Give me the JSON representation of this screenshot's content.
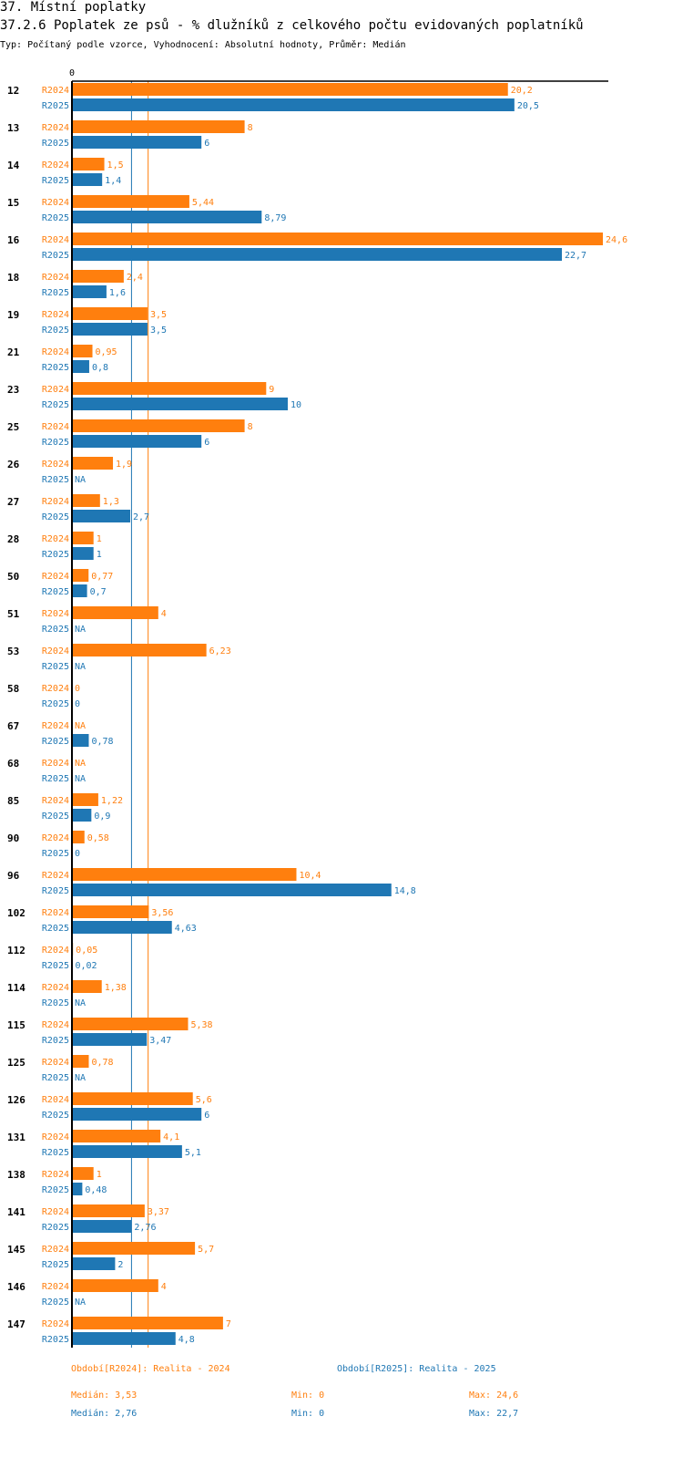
{
  "section_title": "37. Místní poplatky",
  "chart_title": "37.2.6 Poplatek ze psů - % dlužníků z celkového počtu evidovaných poplatníků",
  "subtitle": "Typ: Počítaný podle vzorce, Vyhodnocení: Absolutní hodnoty, Průměr: Medián",
  "colors": {
    "r2024": "#ff7f0e",
    "r2025": "#1f77b4"
  },
  "chart_data": {
    "type": "bar",
    "orientation": "horizontal",
    "axis_tick_label": "0",
    "xlim": [
      0,
      25.3
    ],
    "series": [
      {
        "name": "R2024",
        "legend": "Období[R2024]: Realita - 2024",
        "median": 3.53,
        "median_label": "Medián: 3,53",
        "min_label": "Min: 0",
        "max_label": "Max: 24,6"
      },
      {
        "name": "R2025",
        "legend": "Období[R2025]: Realita - 2025",
        "median": 2.76,
        "median_label": "Medián: 2,76",
        "min_label": "Min: 0",
        "max_label": "Max: 22,7"
      }
    ],
    "categories": [
      {
        "label": "12",
        "r2024": 20.2,
        "r2024_label": "20,2",
        "r2025": 20.5,
        "r2025_label": "20,5"
      },
      {
        "label": "13",
        "r2024": 8,
        "r2024_label": "8",
        "r2025": 6,
        "r2025_label": "6"
      },
      {
        "label": "14",
        "r2024": 1.5,
        "r2024_label": "1,5",
        "r2025": 1.4,
        "r2025_label": "1,4"
      },
      {
        "label": "15",
        "r2024": 5.44,
        "r2024_label": "5,44",
        "r2025": 8.79,
        "r2025_label": "8,79"
      },
      {
        "label": "16",
        "r2024": 24.6,
        "r2024_label": "24,6",
        "r2025": 22.7,
        "r2025_label": "22,7"
      },
      {
        "label": "18",
        "r2024": 2.4,
        "r2024_label": "2,4",
        "r2025": 1.6,
        "r2025_label": "1,6"
      },
      {
        "label": "19",
        "r2024": 3.5,
        "r2024_label": "3,5",
        "r2025": 3.5,
        "r2025_label": "3,5"
      },
      {
        "label": "21",
        "r2024": 0.95,
        "r2024_label": "0,95",
        "r2025": 0.8,
        "r2025_label": "0,8"
      },
      {
        "label": "23",
        "r2024": 9,
        "r2024_label": "9",
        "r2025": 10,
        "r2025_label": "10"
      },
      {
        "label": "25",
        "r2024": 8,
        "r2024_label": "8",
        "r2025": 6,
        "r2025_label": "6"
      },
      {
        "label": "26",
        "r2024": 1.9,
        "r2024_label": "1,9",
        "r2025": null,
        "r2025_label": "NA"
      },
      {
        "label": "27",
        "r2024": 1.3,
        "r2024_label": "1,3",
        "r2025": 2.7,
        "r2025_label": "2,7"
      },
      {
        "label": "28",
        "r2024": 1,
        "r2024_label": "1",
        "r2025": 1,
        "r2025_label": "1"
      },
      {
        "label": "50",
        "r2024": 0.77,
        "r2024_label": "0,77",
        "r2025": 0.7,
        "r2025_label": "0,7"
      },
      {
        "label": "51",
        "r2024": 4,
        "r2024_label": "4",
        "r2025": null,
        "r2025_label": "NA"
      },
      {
        "label": "53",
        "r2024": 6.23,
        "r2024_label": "6,23",
        "r2025": null,
        "r2025_label": "NA"
      },
      {
        "label": "58",
        "r2024": 0,
        "r2024_label": "0",
        "r2025": 0,
        "r2025_label": "0"
      },
      {
        "label": "67",
        "r2024": null,
        "r2024_label": "NA",
        "r2025": 0.78,
        "r2025_label": "0,78"
      },
      {
        "label": "68",
        "r2024": null,
        "r2024_label": "NA",
        "r2025": null,
        "r2025_label": "NA"
      },
      {
        "label": "85",
        "r2024": 1.22,
        "r2024_label": "1,22",
        "r2025": 0.9,
        "r2025_label": "0,9"
      },
      {
        "label": "90",
        "r2024": 0.58,
        "r2024_label": "0,58",
        "r2025": 0,
        "r2025_label": "0"
      },
      {
        "label": "96",
        "r2024": 10.4,
        "r2024_label": "10,4",
        "r2025": 14.8,
        "r2025_label": "14,8"
      },
      {
        "label": "102",
        "r2024": 3.56,
        "r2024_label": "3,56",
        "r2025": 4.63,
        "r2025_label": "4,63"
      },
      {
        "label": "112",
        "r2024": 0.05,
        "r2024_label": "0,05",
        "r2025": 0.02,
        "r2025_label": "0,02"
      },
      {
        "label": "114",
        "r2024": 1.38,
        "r2024_label": "1,38",
        "r2025": null,
        "r2025_label": "NA"
      },
      {
        "label": "115",
        "r2024": 5.38,
        "r2024_label": "5,38",
        "r2025": 3.47,
        "r2025_label": "3,47"
      },
      {
        "label": "125",
        "r2024": 0.78,
        "r2024_label": "0,78",
        "r2025": null,
        "r2025_label": "NA"
      },
      {
        "label": "126",
        "r2024": 5.6,
        "r2024_label": "5,6",
        "r2025": 6,
        "r2025_label": "6"
      },
      {
        "label": "131",
        "r2024": 4.1,
        "r2024_label": "4,1",
        "r2025": 5.1,
        "r2025_label": "5,1"
      },
      {
        "label": "138",
        "r2024": 1,
        "r2024_label": "1",
        "r2025": 0.48,
        "r2025_label": "0,48"
      },
      {
        "label": "141",
        "r2024": 3.37,
        "r2024_label": "3,37",
        "r2025": 2.76,
        "r2025_label": "2,76"
      },
      {
        "label": "145",
        "r2024": 5.7,
        "r2024_label": "5,7",
        "r2025": 2,
        "r2025_label": "2"
      },
      {
        "label": "146",
        "r2024": 4,
        "r2024_label": "4",
        "r2025": null,
        "r2025_label": "NA"
      },
      {
        "label": "147",
        "r2024": 7,
        "r2024_label": "7",
        "r2025": 4.8,
        "r2025_label": "4,8"
      }
    ]
  }
}
